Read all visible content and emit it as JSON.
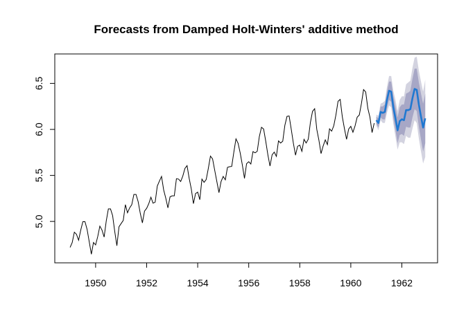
{
  "chart_data": {
    "type": "line",
    "title": "Forecasts from Damped Holt-Winters' additive method",
    "xlabel": "",
    "ylabel": "",
    "xlim": [
      1948.4,
      1963.4
    ],
    "ylim": [
      4.55,
      6.82
    ],
    "xticks": [
      "1950",
      "1952",
      "1954",
      "1956",
      "1958",
      "1960",
      "1962"
    ],
    "yticks": [
      "5.0",
      "5.5",
      "6.0",
      "6.5"
    ],
    "grid": false,
    "legend": "none",
    "observed": {
      "start": 1949,
      "frequency": 12,
      "values": [
        4.718,
        4.771,
        4.883,
        4.86,
        4.796,
        4.905,
        4.997,
        4.997,
        4.913,
        4.779,
        4.644,
        4.771,
        4.745,
        4.836,
        4.949,
        4.906,
        4.83,
        5.004,
        5.136,
        5.136,
        5.063,
        4.89,
        4.736,
        4.942,
        4.977,
        5.011,
        5.182,
        5.094,
        5.147,
        5.182,
        5.293,
        5.293,
        5.215,
        5.088,
        4.984,
        5.112,
        5.142,
        5.193,
        5.263,
        5.199,
        5.209,
        5.384,
        5.438,
        5.489,
        5.342,
        5.252,
        5.147,
        5.268,
        5.278,
        5.278,
        5.464,
        5.46,
        5.434,
        5.493,
        5.576,
        5.606,
        5.468,
        5.352,
        5.193,
        5.303,
        5.318,
        5.236,
        5.46,
        5.425,
        5.455,
        5.576,
        5.71,
        5.68,
        5.557,
        5.434,
        5.313,
        5.434,
        5.489,
        5.452,
        5.587,
        5.595,
        5.598,
        5.753,
        5.897,
        5.849,
        5.743,
        5.613,
        5.468,
        5.628,
        5.649,
        5.624,
        5.759,
        5.746,
        5.762,
        5.924,
        6.023,
        6.004,
        5.872,
        5.724,
        5.602,
        5.724,
        5.753,
        5.707,
        5.875,
        5.852,
        5.872,
        6.045,
        6.142,
        6.146,
        6.001,
        5.849,
        5.72,
        5.817,
        5.829,
        5.762,
        5.892,
        5.852,
        5.894,
        6.075,
        6.196,
        6.225,
        6.001,
        5.883,
        5.737,
        5.82,
        5.886,
        5.835,
        6.006,
        5.981,
        6.04,
        6.157,
        6.306,
        6.326,
        6.138,
        6.009,
        5.892,
        6.004,
        6.033,
        5.969,
        6.038,
        6.133,
        6.157,
        6.282,
        6.433,
        6.407,
        6.23,
        6.133,
        5.966,
        6.068
      ]
    },
    "forecast": {
      "start": 1961,
      "frequency": 12,
      "point": [
        6.1,
        6.07,
        6.19,
        6.18,
        6.19,
        6.32,
        6.42,
        6.41,
        6.24,
        6.12,
        5.99,
        6.09,
        6.11,
        6.1,
        6.21,
        6.21,
        6.22,
        6.34,
        6.44,
        6.43,
        6.27,
        6.14,
        6.02,
        6.12
      ],
      "lo80": [
        6.06,
        6.02,
        6.13,
        6.11,
        6.11,
        6.23,
        6.32,
        6.3,
        6.12,
        5.99,
        5.85,
        5.94,
        5.95,
        5.93,
        6.03,
        6.02,
        6.02,
        6.13,
        6.22,
        6.2,
        6.03,
        5.89,
        5.76,
        5.85
      ],
      "hi80": [
        6.14,
        6.12,
        6.25,
        6.25,
        6.27,
        6.41,
        6.52,
        6.52,
        6.36,
        6.25,
        6.13,
        6.24,
        6.27,
        6.27,
        6.39,
        6.4,
        6.42,
        6.55,
        6.66,
        6.66,
        6.51,
        6.39,
        6.28,
        6.39
      ],
      "lo95": [
        6.04,
        5.99,
        6.1,
        6.07,
        6.07,
        6.18,
        6.26,
        6.24,
        6.06,
        5.92,
        5.78,
        5.86,
        5.86,
        5.84,
        5.93,
        5.91,
        5.91,
        6.01,
        6.1,
        6.07,
        5.9,
        5.76,
        5.63,
        5.7
      ],
      "hi95": [
        6.16,
        6.15,
        6.28,
        6.29,
        6.31,
        6.46,
        6.58,
        6.58,
        6.42,
        6.32,
        6.2,
        6.32,
        6.36,
        6.36,
        6.49,
        6.51,
        6.53,
        6.67,
        6.78,
        6.79,
        6.64,
        6.52,
        6.41,
        6.54
      ]
    },
    "colors": {
      "observed": "#000000",
      "forecast": "#1f78d1",
      "band80": "#a7a7c6",
      "band95": "#d3d3e0"
    }
  }
}
